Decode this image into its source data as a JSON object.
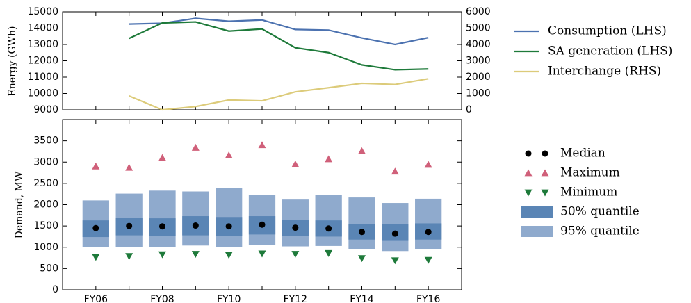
{
  "chart_data": [
    {
      "type": "line",
      "ylabel": "Energy (GWh)",
      "ylim": [
        9000,
        15000
      ],
      "yticks": [
        9000,
        10000,
        11000,
        12000,
        13000,
        14000,
        15000
      ],
      "y2lim": [
        0,
        6000
      ],
      "y2ticks": [
        0,
        1000,
        2000,
        3000,
        4000,
        5000,
        6000
      ],
      "series": [
        {
          "name": "Consumption (LHS)",
          "color": "#4c72b0",
          "values": [
            null,
            14250,
            14300,
            14600,
            14420,
            14500,
            13920,
            13880,
            13400,
            13000,
            13420
          ]
        },
        {
          "name": "SA generation (LHS)",
          "color": "#1e7a3a",
          "values": [
            null,
            13370,
            14320,
            14380,
            13820,
            13950,
            12800,
            12500,
            11750,
            11450,
            11500
          ]
        },
        {
          "name": "Interchange (RHS)",
          "color": "#dccb7a",
          "axis": "y2",
          "values": [
            null,
            850,
            0,
            200,
            600,
            550,
            1100,
            1350,
            1620,
            1550,
            1900
          ]
        }
      ]
    },
    {
      "type": "range",
      "ylabel": "Demand, MW",
      "categories": [
        "FY06",
        null,
        "FY08",
        null,
        "FY10",
        null,
        "FY12",
        null,
        "FY14",
        null,
        "FY16"
      ],
      "ylim": [
        0,
        4000
      ],
      "yticks": [
        0,
        500,
        1000,
        1500,
        2000,
        2500,
        3000,
        3500
      ],
      "series": [
        {
          "name": "Median",
          "marker": "circle",
          "color": "#000000",
          "values": [
            1450,
            1500,
            1490,
            1510,
            1490,
            1530,
            1460,
            1440,
            1360,
            1320,
            1360
          ]
        },
        {
          "name": "Maximum",
          "marker": "triangle-up",
          "color": "#d0607a",
          "values": [
            2900,
            2870,
            3100,
            3340,
            3160,
            3400,
            2950,
            3070,
            3260,
            2780,
            2940
          ]
        },
        {
          "name": "Minimum",
          "marker": "triangle-down",
          "color": "#1e7a3a",
          "values": [
            770,
            790,
            830,
            840,
            820,
            850,
            840,
            860,
            740,
            690,
            700
          ]
        },
        {
          "name": "50% quantile",
          "marker": "band",
          "color": "#5a85b5",
          "low": [
            1240,
            1280,
            1270,
            1280,
            1270,
            1300,
            1270,
            1250,
            1180,
            1150,
            1180
          ],
          "high": [
            1630,
            1690,
            1680,
            1730,
            1710,
            1730,
            1640,
            1630,
            1550,
            1550,
            1560
          ]
        },
        {
          "name": "95% quantile",
          "marker": "band",
          "color": "#8faacd",
          "low": [
            1000,
            1010,
            1010,
            1040,
            1010,
            1060,
            1020,
            1030,
            960,
            910,
            960
          ],
          "high": [
            2100,
            2260,
            2330,
            2310,
            2390,
            2230,
            2120,
            2230,
            2170,
            2040,
            2140
          ]
        }
      ]
    }
  ]
}
